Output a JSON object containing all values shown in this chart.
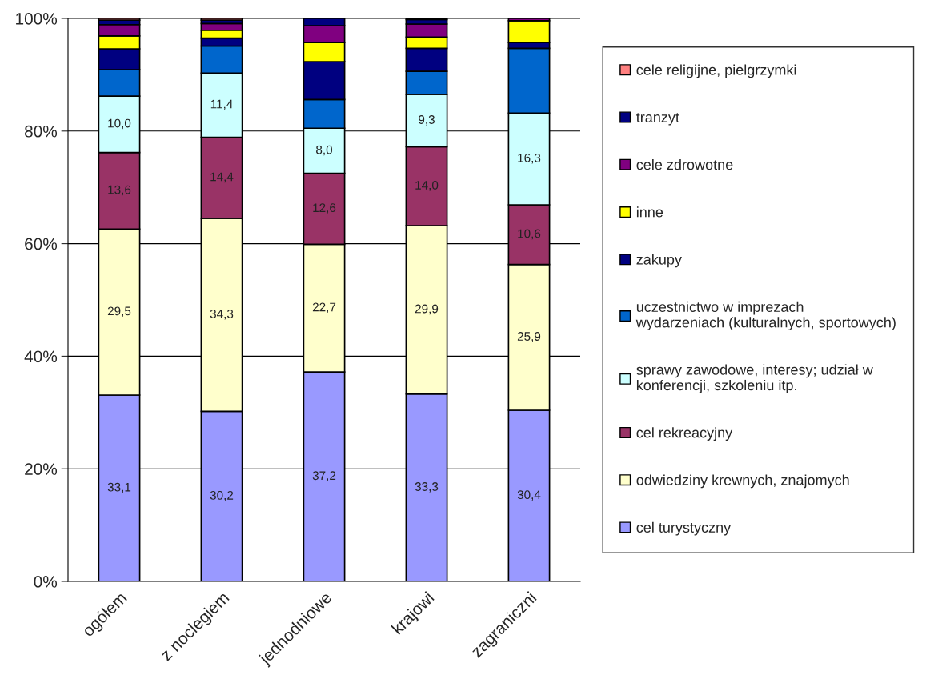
{
  "chart_data": {
    "type": "bar",
    "stacked": true,
    "categories": [
      "ogółem",
      "z noclegiem",
      "jednodniowe",
      "krajowi",
      "zagraniczni"
    ],
    "series": [
      {
        "name": "cel turystyczny",
        "color": "#9999ff",
        "values": [
          33.1,
          30.2,
          37.2,
          33.3,
          30.4
        ],
        "value_labels": [
          "33,1",
          "30,2",
          "37,2",
          "33,3",
          "30,4"
        ]
      },
      {
        "name": "odwiedziny krewnych, znajomych",
        "color": "#ffffcc",
        "values": [
          29.5,
          34.3,
          22.7,
          29.9,
          25.9
        ],
        "value_labels": [
          "29,5",
          "34,3",
          "22,7",
          "29,9",
          "25,9"
        ]
      },
      {
        "name": "cel rekreacyjny",
        "color": "#993366",
        "values": [
          13.6,
          14.4,
          12.6,
          14.0,
          10.6
        ],
        "value_labels": [
          "13,6",
          "14,4",
          "12,6",
          "14,0",
          "10,6"
        ]
      },
      {
        "name": "sprawy zawodowe, interesy; udział w\nkonferencji, szkoleniu itp.",
        "color": "#ccffff",
        "values": [
          10.0,
          11.4,
          8.0,
          9.3,
          16.3
        ],
        "value_labels": [
          "10,0",
          "11,4",
          "8,0",
          "9,3",
          "16,3"
        ]
      },
      {
        "name": "uczestnictwo w imprezach\nwydarzeniach (kulturalnych, sportowych)",
        "color": "#0066cc",
        "values": [
          4.7,
          4.8,
          5.1,
          4.1,
          11.5
        ]
      },
      {
        "name": "zakupy",
        "color": "#000080",
        "values": [
          3.7,
          1.4,
          6.7,
          4.1,
          1.0
        ]
      },
      {
        "name": "inne",
        "color": "#ffff00",
        "values": [
          2.3,
          1.4,
          3.4,
          2.0,
          3.9
        ]
      },
      {
        "name": "cele zdrowotne",
        "color": "#800080",
        "values": [
          2.0,
          1.2,
          3.0,
          2.3,
          0.4
        ]
      },
      {
        "name": "tranzyt",
        "color": "#000080",
        "values": [
          0.8,
          0.6,
          1.3,
          0.8,
          null
        ]
      },
      {
        "name": "cele religijne, pielgrzymki",
        "color": "#ff8080",
        "values": [
          0.3,
          0.3,
          null,
          0.2,
          null
        ]
      }
    ],
    "ylim": [
      0,
      100
    ],
    "yticks": [
      {
        "value": 0,
        "label": "0%"
      },
      {
        "value": 20,
        "label": "20%"
      },
      {
        "value": 40,
        "label": "40%"
      },
      {
        "value": 60,
        "label": "60%"
      },
      {
        "value": 80,
        "label": "80%"
      },
      {
        "value": 100,
        "label": "100%"
      }
    ],
    "grid": "y",
    "legend": "right"
  }
}
